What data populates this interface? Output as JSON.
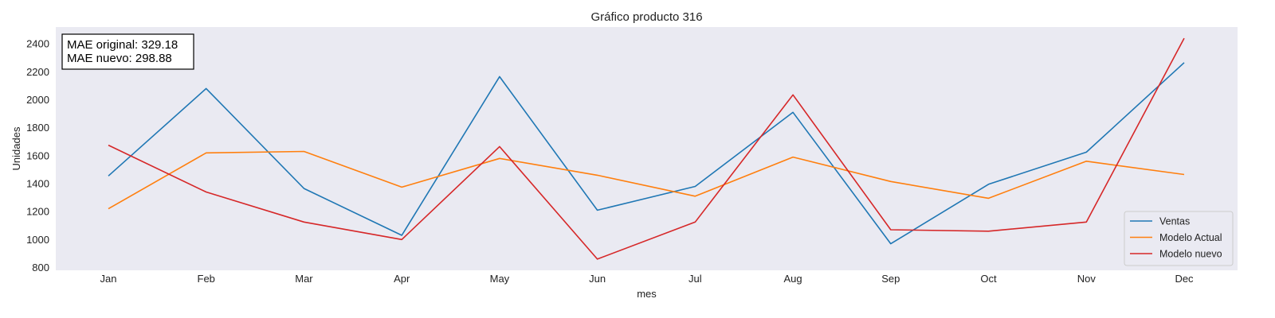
{
  "chart_data": {
    "type": "line",
    "title": "Gráfico producto 316",
    "xlabel": "mes",
    "ylabel": "Unidades",
    "categories": [
      "Jan",
      "Feb",
      "Mar",
      "Apr",
      "May",
      "Jun",
      "Jul",
      "Aug",
      "Sep",
      "Oct",
      "Nov",
      "Dec"
    ],
    "ylim": [
      780,
      2520
    ],
    "yticks": [
      800,
      1000,
      1200,
      1400,
      1600,
      1800,
      2000,
      2200,
      2400
    ],
    "grid": false,
    "legend_position": "lower-right",
    "series": [
      {
        "name": "Ventas",
        "color": "#1f77b4",
        "values": [
          1455,
          2080,
          1365,
          1030,
          2165,
          1210,
          1380,
          1910,
          970,
          1395,
          1625,
          2265
        ]
      },
      {
        "name": "Modelo Actual",
        "color": "#ff7f0e",
        "values": [
          1220,
          1620,
          1630,
          1375,
          1580,
          1460,
          1310,
          1590,
          1415,
          1295,
          1560,
          1465
        ]
      },
      {
        "name": "Modelo nuevo",
        "color": "#d62728",
        "values": [
          1675,
          1340,
          1125,
          1000,
          1665,
          860,
          1125,
          2035,
          1070,
          1060,
          1125,
          2440
        ]
      }
    ],
    "annotation": {
      "lines": [
        "MAE original: 329.18",
        "MAE nuevo: 298.88"
      ]
    }
  },
  "colors": {
    "plot_background": "#eaeaf2"
  }
}
